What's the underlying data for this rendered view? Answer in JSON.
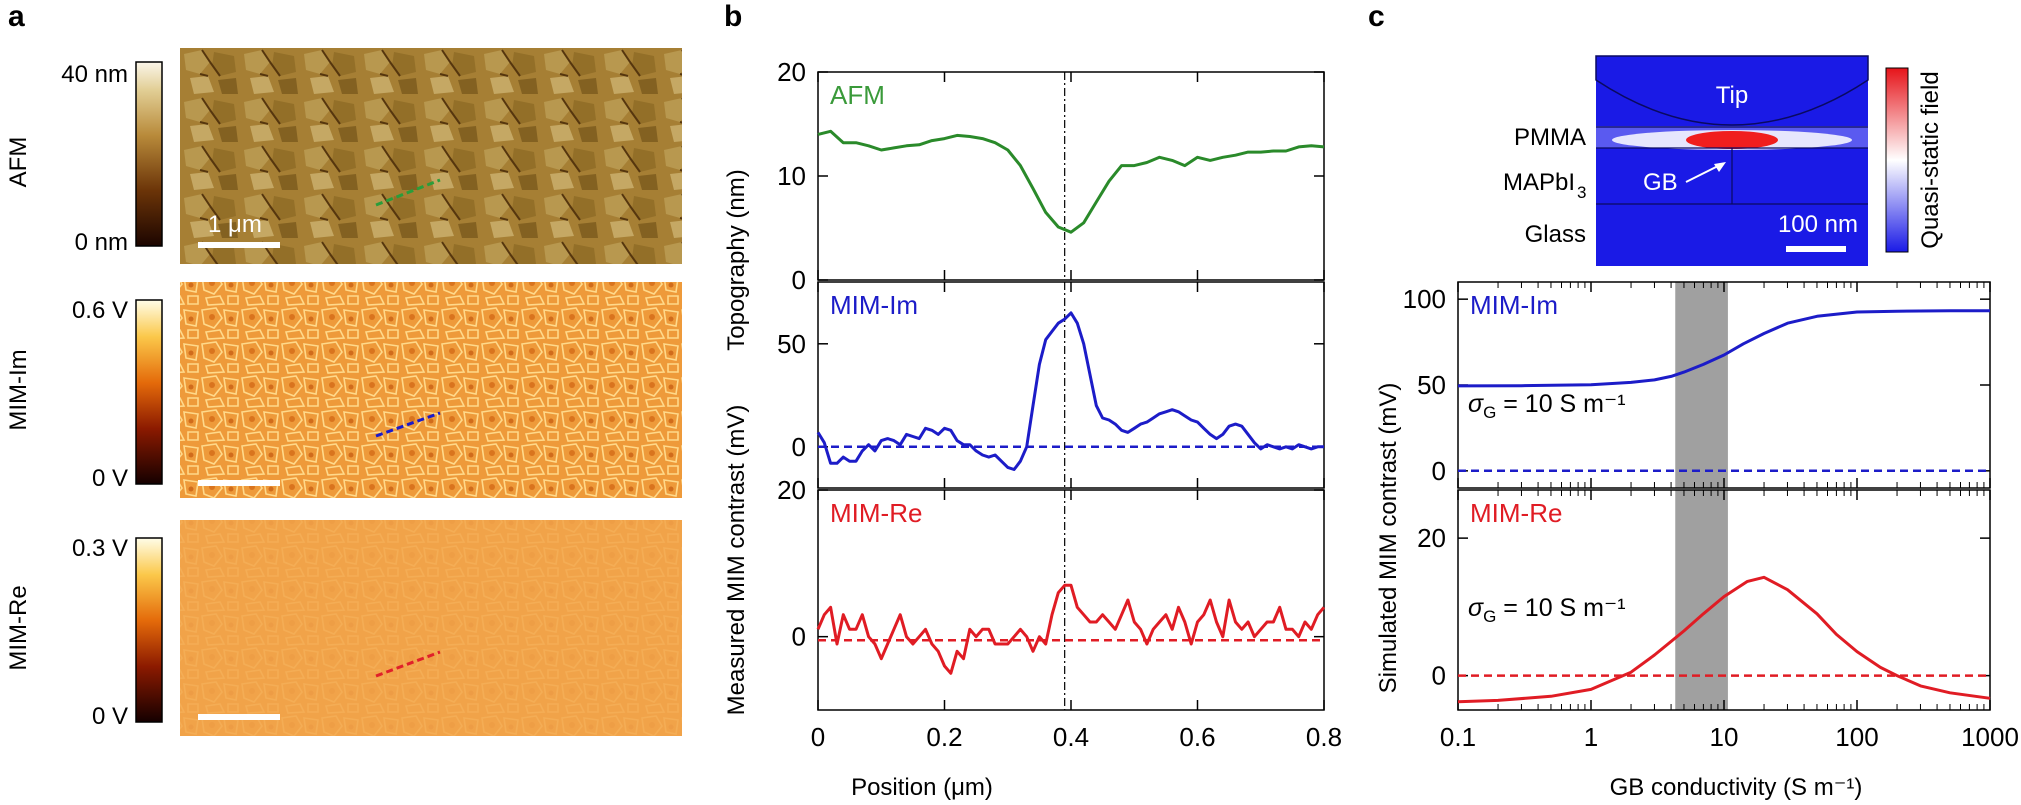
{
  "panel_labels": {
    "a": "a",
    "b": "b",
    "c": "c"
  },
  "panel_a": {
    "rows": [
      {
        "label": "AFM",
        "cb_max": "40 nm",
        "cb_min": "0 nm",
        "scale_text": "1 μm"
      },
      {
        "label": "MIM-Im",
        "cb_max": "0.6 V",
        "cb_min": "0 V",
        "scale_text": ""
      },
      {
        "label": "MIM-Re",
        "cb_max": "0.3 V",
        "cb_min": "0 V",
        "scale_text": ""
      }
    ],
    "line_colors": [
      "#2a9d3a",
      "#1a1acc",
      "#e0202a"
    ]
  },
  "chart_data": [
    {
      "type": "line",
      "title": "AFM",
      "xlabel": "Position (μm)",
      "ylabel": "Topography (nm)",
      "ylim": [
        0,
        20
      ],
      "xlim": [
        0,
        0.8
      ],
      "yticks": [
        0,
        10,
        20
      ],
      "xticks": [
        0,
        0.2,
        0.4,
        0.6,
        0.8
      ],
      "vline_x": 0.39,
      "series": [
        {
          "name": "AFM",
          "color": "#2a8a2a",
          "dashed": false,
          "x": [
            0,
            0.02,
            0.04,
            0.06,
            0.08,
            0.1,
            0.12,
            0.14,
            0.16,
            0.18,
            0.2,
            0.22,
            0.24,
            0.26,
            0.28,
            0.3,
            0.32,
            0.34,
            0.36,
            0.38,
            0.4,
            0.42,
            0.44,
            0.46,
            0.48,
            0.5,
            0.52,
            0.54,
            0.56,
            0.58,
            0.6,
            0.62,
            0.64,
            0.66,
            0.68,
            0.7,
            0.72,
            0.74,
            0.76,
            0.78,
            0.8
          ],
          "y": [
            14,
            14.3,
            13.2,
            13.2,
            12.9,
            12.5,
            12.7,
            12.9,
            13.0,
            13.4,
            13.6,
            13.9,
            13.8,
            13.6,
            13.2,
            12.5,
            11.0,
            8.8,
            6.5,
            5.1,
            4.6,
            5.5,
            7.5,
            9.5,
            11.0,
            11.0,
            11.3,
            11.8,
            11.5,
            11.0,
            11.8,
            11.5,
            11.8,
            12.0,
            12.3,
            12.3,
            12.4,
            12.4,
            12.8,
            12.9,
            12.8
          ]
        }
      ]
    },
    {
      "type": "line",
      "title": "MIM-Im",
      "ylabel": "Measured MIM contrast (mV)",
      "ylim": [
        -20,
        80
      ],
      "xlim": [
        0,
        0.8
      ],
      "yticks": [
        0,
        50
      ],
      "vline_x": 0.39,
      "series": [
        {
          "name": "MIM-Im",
          "color": "#1c1cc8",
          "dashed": false,
          "x": [
            0,
            0.01,
            0.02,
            0.03,
            0.04,
            0.05,
            0.06,
            0.07,
            0.08,
            0.09,
            0.1,
            0.11,
            0.12,
            0.13,
            0.14,
            0.15,
            0.16,
            0.17,
            0.18,
            0.19,
            0.2,
            0.21,
            0.22,
            0.23,
            0.24,
            0.25,
            0.26,
            0.27,
            0.28,
            0.29,
            0.3,
            0.31,
            0.32,
            0.33,
            0.34,
            0.35,
            0.36,
            0.37,
            0.38,
            0.39,
            0.4,
            0.41,
            0.42,
            0.43,
            0.44,
            0.45,
            0.46,
            0.47,
            0.48,
            0.49,
            0.5,
            0.51,
            0.52,
            0.53,
            0.54,
            0.55,
            0.56,
            0.57,
            0.58,
            0.59,
            0.6,
            0.61,
            0.62,
            0.63,
            0.64,
            0.65,
            0.66,
            0.67,
            0.68,
            0.69,
            0.7,
            0.71,
            0.72,
            0.73,
            0.74,
            0.75,
            0.76,
            0.77,
            0.78,
            0.79,
            0.8
          ],
          "y": [
            7,
            2,
            -8,
            -8,
            -5,
            -7,
            -7,
            -2,
            1,
            -2,
            3,
            4,
            3,
            1,
            6,
            5,
            4,
            9,
            8,
            6,
            9,
            8,
            3,
            1,
            1,
            -2,
            -4,
            -5,
            -4,
            -7,
            -10,
            -11,
            -7,
            0,
            20,
            40,
            52,
            56,
            60,
            62,
            65,
            60,
            50,
            35,
            20,
            14,
            13,
            11,
            8,
            7,
            9,
            11,
            12,
            14,
            16,
            17,
            18,
            17,
            15,
            13,
            12,
            9,
            6,
            4,
            6,
            10,
            11,
            10,
            6,
            2,
            -1,
            1,
            0,
            -1,
            0,
            -1,
            1,
            0,
            -1,
            0,
            0
          ]
        },
        {
          "name": "MIM-Im baseline",
          "color": "#1c1cc8",
          "dashed": true,
          "x": [
            0,
            0.8
          ],
          "y": [
            0,
            0
          ]
        }
      ]
    },
    {
      "type": "line",
      "title": "MIM-Re",
      "xlabel": "Position (μm)",
      "ylim": [
        -10,
        20
      ],
      "xlim": [
        0,
        0.8
      ],
      "yticks": [
        0,
        20
      ],
      "vline_x": 0.39,
      "series": [
        {
          "name": "MIM-Re",
          "color": "#e01c24",
          "dashed": false,
          "x": [
            0,
            0.01,
            0.02,
            0.03,
            0.04,
            0.05,
            0.06,
            0.07,
            0.08,
            0.09,
            0.1,
            0.11,
            0.12,
            0.13,
            0.14,
            0.15,
            0.16,
            0.17,
            0.18,
            0.19,
            0.2,
            0.21,
            0.22,
            0.23,
            0.24,
            0.25,
            0.26,
            0.27,
            0.28,
            0.29,
            0.3,
            0.31,
            0.32,
            0.33,
            0.34,
            0.35,
            0.36,
            0.37,
            0.38,
            0.39,
            0.4,
            0.41,
            0.42,
            0.43,
            0.44,
            0.45,
            0.46,
            0.47,
            0.48,
            0.49,
            0.5,
            0.51,
            0.52,
            0.53,
            0.54,
            0.55,
            0.56,
            0.57,
            0.58,
            0.59,
            0.6,
            0.61,
            0.62,
            0.63,
            0.64,
            0.65,
            0.66,
            0.67,
            0.68,
            0.69,
            0.7,
            0.71,
            0.72,
            0.73,
            0.74,
            0.75,
            0.76,
            0.77,
            0.78,
            0.79,
            0.8
          ],
          "y": [
            1,
            3,
            4,
            -1,
            3,
            1,
            1,
            3,
            0,
            -1,
            -3,
            -1,
            1,
            3,
            0,
            -1,
            0,
            1,
            -1,
            -2,
            -4,
            -5,
            -2,
            -3,
            1,
            0,
            1,
            1,
            -1,
            -1,
            -1,
            0,
            1,
            0,
            -2,
            0,
            -1,
            3,
            6,
            7,
            7,
            4,
            3,
            2,
            2,
            3,
            2,
            1,
            3,
            5,
            2,
            1,
            -1,
            1,
            2,
            3,
            1,
            4,
            2,
            -1,
            2,
            3,
            5,
            2,
            0,
            5,
            2,
            1,
            2,
            0,
            1,
            2,
            2,
            4,
            1,
            1,
            0,
            2,
            1,
            3,
            4
          ]
        },
        {
          "name": "MIM-Re baseline",
          "color": "#e01c24",
          "dashed": true,
          "x": [
            0,
            0.8
          ],
          "y": [
            -0.5,
            -0.5
          ]
        }
      ]
    },
    {
      "type": "line",
      "title": "MIM-Im",
      "ylabel": "Simulated MIM contrast (mV)",
      "xlabel": "GB conductivity (S m⁻¹)",
      "xscale": "log",
      "xlim": [
        0.1,
        1000
      ],
      "ylim": [
        -10,
        110
      ],
      "yticks": [
        0,
        50,
        100
      ],
      "annotation": "σG = 10 S m⁻¹",
      "shade_x": [
        4.3,
        10.7
      ],
      "series": [
        {
          "name": "MIM-Im simulated",
          "color": "#1c1cc8",
          "dashed": false,
          "x": [
            0.1,
            0.3,
            1,
            2,
            3,
            4,
            5,
            7,
            10,
            14,
            20,
            30,
            50,
            100,
            200,
            500,
            1000
          ],
          "y": [
            49.5,
            49.6,
            50.2,
            51.5,
            53,
            55,
            57.5,
            62,
            67.5,
            74,
            80,
            86,
            90,
            92.5,
            93,
            93.2,
            93.3
          ]
        },
        {
          "name": "MIM-Im zero",
          "color": "#1c1cc8",
          "dashed": true,
          "x": [
            0.1,
            1000
          ],
          "y": [
            0,
            0
          ]
        }
      ]
    },
    {
      "type": "line",
      "title": "MIM-Re",
      "xscale": "log",
      "xlim": [
        0.1,
        1000
      ],
      "ylim": [
        -5,
        27
      ],
      "yticks": [
        0,
        20
      ],
      "xticks": [
        "0.1",
        "1",
        "10",
        "100",
        "1000"
      ],
      "annotation": "σG = 10 S m⁻¹",
      "shade_x": [
        4.3,
        10.7
      ],
      "series": [
        {
          "name": "MIM-Re simulated",
          "color": "#e01c24",
          "dashed": false,
          "x": [
            0.1,
            0.2,
            0.5,
            1,
            2,
            3,
            5,
            7,
            10,
            15,
            20,
            30,
            50,
            70,
            100,
            150,
            200,
            300,
            500,
            1000
          ],
          "y": [
            -3.8,
            -3.6,
            -3.0,
            -2.0,
            0.5,
            3,
            6.5,
            9,
            11.5,
            13.7,
            14.3,
            12.5,
            9,
            6,
            3.5,
            1.2,
            0,
            -1.5,
            -2.5,
            -3.3
          ]
        },
        {
          "name": "MIM-Re zero",
          "color": "#e01c24",
          "dashed": true,
          "x": [
            0.1,
            1000
          ],
          "y": [
            0,
            0
          ]
        }
      ]
    }
  ],
  "inset": {
    "tip": "Tip",
    "pmma": "PMMA",
    "mapbi_main": "MAPbI",
    "mapbi_sub": "3",
    "gb": "GB",
    "glass": "Glass",
    "scale": "100 nm",
    "colorbar_label": "Quasi-static field"
  },
  "axis_labels": {
    "b_pos": "Position (μm)",
    "c_gb": "GB conductivity (S m⁻¹)"
  }
}
